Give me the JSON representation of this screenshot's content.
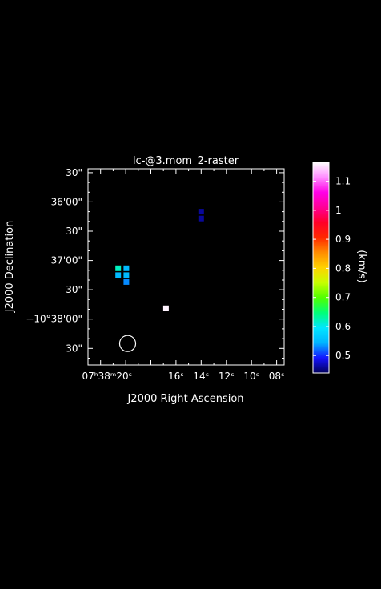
{
  "chart_data": {
    "type": "heatmap",
    "title": "lc-@3.mom_2-raster",
    "xlabel": "J2000 Right Ascension",
    "ylabel": "J2000 Declination",
    "x_ticks": [
      {
        "ra_s": 20,
        "label": "07ʰ38ᵐ20ˢ"
      },
      {
        "ra_s": 16,
        "label": "16ˢ"
      },
      {
        "ra_s": 14,
        "label": "14ˢ"
      },
      {
        "ra_s": 12,
        "label": "12ˢ"
      },
      {
        "ra_s": 10,
        "label": "10ˢ"
      },
      {
        "ra_s": 8,
        "label": "08ˢ"
      }
    ],
    "x_range_s": [
      23.0,
      7.4
    ],
    "y_ticks": [
      {
        "dec_arcsec": 30,
        "label": "30\""
      },
      {
        "dec_arcsec": 0,
        "label": "36'00\""
      },
      {
        "dec_arcsec": -30,
        "label": "30\""
      },
      {
        "dec_arcsec": -60,
        "label": "37'00\""
      },
      {
        "dec_arcsec": -90,
        "label": "30\""
      },
      {
        "dec_arcsec": -120,
        "label": "−10°38'00\""
      },
      {
        "dec_arcsec": -150,
        "label": "30\""
      }
    ],
    "y_range_arcsec": [
      34,
      -167
    ],
    "pixels": [
      {
        "ra_s": 14.0,
        "dec_arcsec": -10,
        "value": 0.46
      },
      {
        "ra_s": 14.0,
        "dec_arcsec": -17,
        "value": 0.46
      },
      {
        "ra_s": 20.6,
        "dec_arcsec": -68,
        "value": 0.62
      },
      {
        "ra_s": 19.95,
        "dec_arcsec": -68,
        "value": 0.55
      },
      {
        "ra_s": 20.6,
        "dec_arcsec": -75,
        "value": 0.55
      },
      {
        "ra_s": 19.95,
        "dec_arcsec": -75,
        "value": 0.55
      },
      {
        "ra_s": 19.95,
        "dec_arcsec": -82,
        "value": 0.53
      },
      {
        "ra_s": 16.8,
        "dec_arcsec": -109,
        "value": 1.16
      }
    ],
    "beam": {
      "ra_s": 19.85,
      "dec_arcsec": -145
    },
    "colorbar": {
      "label": "(km/s)",
      "range": [
        0.44,
        1.165
      ],
      "ticks": [
        {
          "value": 0.5,
          "label": "0.5"
        },
        {
          "value": 0.6,
          "label": "0.6"
        },
        {
          "value": 0.7,
          "label": "0.7"
        },
        {
          "value": 0.8,
          "label": "0.8"
        },
        {
          "value": 0.9,
          "label": "0.9"
        },
        {
          "value": 1.0,
          "label": "1"
        },
        {
          "value": 1.1,
          "label": "1.1"
        }
      ],
      "stops": [
        "#02005a",
        "#1414ff",
        "#00b4ff",
        "#00e6ff",
        "#00ff78",
        "#50ff00",
        "#c8ff00",
        "#ffd200",
        "#ff8c00",
        "#ff2800",
        "#ff0028",
        "#ff0096",
        "#ff00e6",
        "#ff8cff",
        "#ffffff"
      ]
    }
  }
}
